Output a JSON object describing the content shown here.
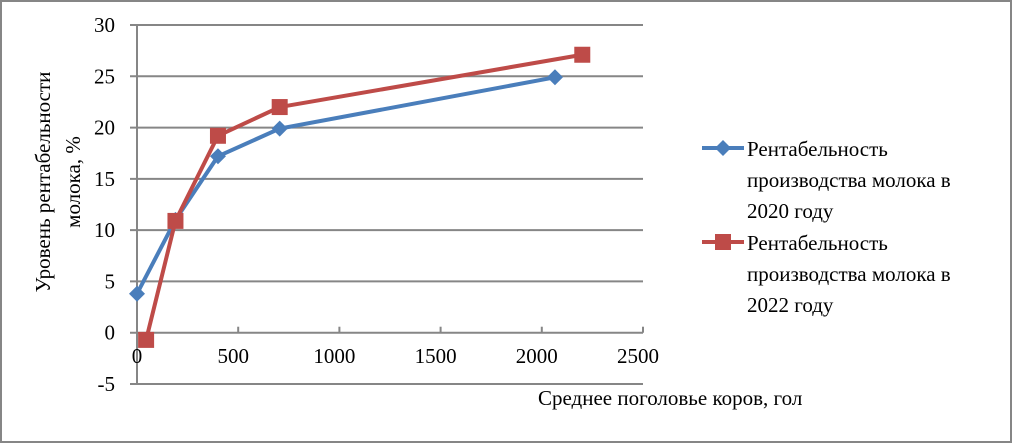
{
  "chart_data": {
    "type": "line",
    "title": "",
    "xlabel": "Среднее поголовье коров, гол",
    "ylabel": "Уровень рентабельности молока, %",
    "ylabel_lines": [
      "Уровень рентабельности",
      "молока, %"
    ],
    "xlim": [
      0,
      2500
    ],
    "ylim": [
      -5,
      30
    ],
    "x_ticks": [
      0,
      500,
      1000,
      1500,
      2000,
      2500
    ],
    "y_ticks": [
      -5,
      0,
      5,
      10,
      15,
      20,
      25,
      30
    ],
    "grid": "horizontal",
    "legend_position": "right",
    "series": [
      {
        "name": "Рентабельность производства молока в 2020 году",
        "legend_lines": [
          "Рентабельность",
          "производства молока в",
          "2020 году"
        ],
        "color": "#4a7ebb",
        "marker": "diamond",
        "x": [
          0,
          190,
          400,
          705,
          2065
        ],
        "y": [
          3.8,
          11.0,
          17.2,
          19.9,
          24.9
        ]
      },
      {
        "name": "Рентабельность производства молока в 2022 году",
        "legend_lines": [
          "Рентабельность",
          "производства молока в",
          "2022 году"
        ],
        "color": "#be4b48",
        "marker": "square",
        "x": [
          45,
          190,
          400,
          705,
          2200
        ],
        "y": [
          -0.7,
          10.9,
          19.2,
          22.0,
          27.1
        ]
      }
    ]
  },
  "colors": {
    "gridline": "#868686",
    "frame": "#868686"
  }
}
